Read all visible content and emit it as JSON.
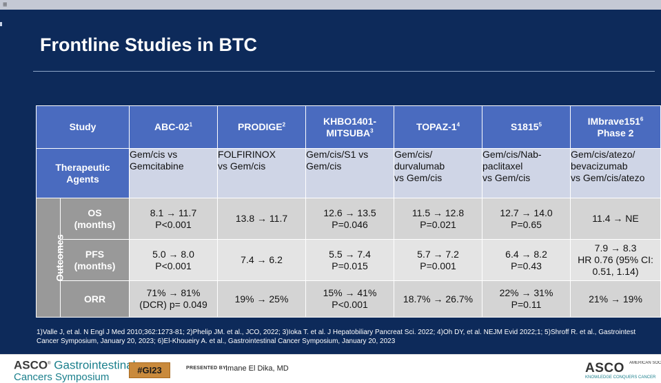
{
  "slide": {
    "title": "Frontline Studies in BTC",
    "top_left_text": "≡",
    "table": {
      "header_first": "Study",
      "studies": [
        {
          "name": "ABC-02",
          "ref": "1"
        },
        {
          "name": "PRODIGE",
          "ref": "2"
        },
        {
          "name": "KHBO1401-MITSUBA",
          "name_line1": "KHBO1401-",
          "name_line2": "MITSUBA",
          "ref": "3"
        },
        {
          "name": "TOPAZ-1",
          "ref": "4"
        },
        {
          "name": "S1815",
          "ref": "5"
        },
        {
          "name": "IMbrave151 Phase 2",
          "name_line1": "IMbrave151",
          "name_line2": "Phase 2",
          "ref": "6"
        }
      ],
      "agents_label_line1": "Therapeutic",
      "agents_label_line2": "Agents",
      "agents": [
        [
          "Gem/cis vs",
          "Gemcitabine"
        ],
        [
          "FOLFIRINOX",
          "vs Gem/cis"
        ],
        [
          "Gem/cis/S1 vs",
          "Gem/cis"
        ],
        [
          "Gem/cis/",
          "durvalumab",
          "vs Gem/cis"
        ],
        [
          "Gem/cis/Nab-",
          "paclitaxel",
          "vs Gem/cis"
        ],
        [
          "Gem/cis/atezo/",
          "bevacizumab",
          "vs Gem/cis/atezo"
        ]
      ],
      "outcomes_label": "Outcomes",
      "rows": [
        {
          "metric_line1": "OS",
          "metric_line2": "(months)",
          "cells": [
            [
              "8.1 → 11.7",
              "P<0.001"
            ],
            [
              "13.8 → 11.7"
            ],
            [
              "12.6 → 13.5",
              "P=0.046"
            ],
            [
              "11.5 → 12.8",
              "P=0.021"
            ],
            [
              "12.7 → 14.0",
              "P=0.65"
            ],
            [
              "11.4 → NE"
            ]
          ]
        },
        {
          "metric_line1": "PFS",
          "metric_line2": "(months)",
          "cells": [
            [
              "5.0 → 8.0",
              "P<0.001"
            ],
            [
              "7.4 → 6.2"
            ],
            [
              "5.5 → 7.4",
              "P=0.015"
            ],
            [
              "5.7 → 7.2",
              "P=0.001"
            ],
            [
              "6.4 → 8.2",
              "P=0.43"
            ],
            [
              "7.9 → 8.3",
              "HR 0.76 (95% CI:",
              "0.51, 1.14)"
            ]
          ]
        },
        {
          "metric_line1": "ORR",
          "metric_line2": "",
          "cells": [
            [
              "71% → 81%",
              "(DCR) p= 0.049"
            ],
            [
              "19% → 25%"
            ],
            [
              "15% → 41%",
              "P<0.001"
            ],
            [
              "18.7% → 26.7%"
            ],
            [
              "22% → 31%",
              "P=0.11"
            ],
            [
              "21% → 19%"
            ]
          ]
        }
      ]
    },
    "footnote_line1": "1)Valle J, et al. N Engl J Med 2010;362:1273-81; 2)Phelip JM. et al., JCO, 2022; 3)Ioka T. et al. J Hepatobiliary Pancreat Sci. 2022; 4)Oh DY, et al. NEJM Evid 2022;1; 5)Shroff R. et al., Gastrointest",
    "footnote_line2": "Cancer Symposium, January 20, 2023; 6)El-Khoueiry A. et al., Gastrointestinal Cancer Symposium, January 20, 2023"
  },
  "footer": {
    "asco_brand": "ASCO",
    "gi_text": "Gastrointestinal",
    "symposium_text": "Cancers Symposium",
    "tag": "#GI23",
    "presented_by_label": "PRESENTED BY:",
    "presenter": "Imane El Dika, MD",
    "asco_right": "ASCO",
    "asco_right_sub": "AMERICAN SOCIETY OF CLINICAL ONCOLOGY",
    "asco_right_sub2": "KNOWLEDGE CONQUERS CANCER"
  }
}
